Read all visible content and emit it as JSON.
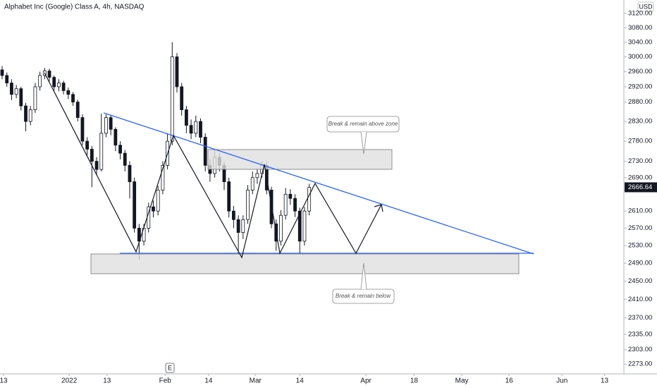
{
  "chart_data": {
    "type": "candlestick",
    "title": "Alphabet Inc (Google) Class A, 4h, NASDAQ",
    "currency": "USD",
    "earnings_marker": "E",
    "last_price": 2666.64,
    "log_scale": true,
    "up_color": "#ffffff",
    "down_color": "#131722",
    "wick_color": "#131722",
    "annotations": [
      "Break & remain above zone",
      "Break & remain below"
    ],
    "open": [
      2965,
      2950,
      2930,
      2900,
      2915,
      2870,
      2830,
      2860,
      2920,
      2950,
      2962,
      2945,
      2920,
      2930,
      2910,
      2900,
      2880,
      2840,
      2780,
      2760,
      2730,
      2710,
      2800,
      2840,
      2810,
      2770,
      2750,
      2720,
      2680,
      2570,
      2540,
      2570,
      2620,
      2610,
      2660,
      2720,
      2780,
      3000,
      2920,
      2860,
      2820,
      2800,
      2830,
      2790,
      2720,
      2700,
      2740,
      2720,
      2680,
      2610,
      2590,
      2560,
      2590,
      2660,
      2690,
      2700,
      2720,
      2660,
      2580,
      2540,
      2600,
      2650,
      2640,
      2610,
      2540,
      2610
    ],
    "high": [
      2975,
      2958,
      2940,
      2925,
      2920,
      2878,
      2870,
      2930,
      2960,
      2970,
      2968,
      2950,
      2940,
      2936,
      2918,
      2906,
      2886,
      2848,
      2790,
      2768,
      2740,
      2850,
      2848,
      2846,
      2815,
      2780,
      2758,
      2730,
      2690,
      2580,
      2580,
      2630,
      2635,
      2670,
      2730,
      2800,
      3040,
      3010,
      2930,
      2870,
      2835,
      2845,
      2838,
      2800,
      2735,
      2760,
      2750,
      2728,
      2690,
      2622,
      2600,
      2600,
      2672,
      2705,
      2712,
      2730,
      2728,
      2668,
      2590,
      2612,
      2665,
      2662,
      2650,
      2618,
      2620,
      2675
    ],
    "low": [
      2940,
      2920,
      2885,
      2890,
      2858,
      2805,
      2820,
      2852,
      2910,
      2940,
      2935,
      2910,
      2908,
      2900,
      2888,
      2870,
      2830,
      2770,
      2745,
      2667,
      2695,
      2705,
      2790,
      2795,
      2755,
      2735,
      2705,
      2640,
      2560,
      2498,
      2530,
      2560,
      2595,
      2600,
      2650,
      2710,
      2770,
      2905,
      2845,
      2800,
      2785,
      2790,
      2775,
      2705,
      2680,
      2690,
      2705,
      2660,
      2595,
      2570,
      2510,
      2545,
      2580,
      2650,
      2675,
      2690,
      2650,
      2570,
      2518,
      2530,
      2590,
      2625,
      2596,
      2512,
      2530,
      2600
    ],
    "close": [
      2950,
      2930,
      2900,
      2915,
      2870,
      2830,
      2860,
      2920,
      2950,
      2962,
      2945,
      2920,
      2930,
      2910,
      2900,
      2880,
      2840,
      2780,
      2760,
      2730,
      2710,
      2800,
      2840,
      2810,
      2770,
      2750,
      2720,
      2680,
      2570,
      2540,
      2570,
      2620,
      2610,
      2660,
      2720,
      2780,
      3000,
      2920,
      2860,
      2820,
      2800,
      2830,
      2790,
      2720,
      2700,
      2740,
      2720,
      2680,
      2610,
      2590,
      2560,
      2590,
      2660,
      2690,
      2700,
      2720,
      2660,
      2580,
      2540,
      2600,
      2650,
      2640,
      2610,
      2540,
      2610,
      2666.64
    ],
    "xlim": [
      -0.45,
      131.6
    ],
    "xticks": [
      {
        "value": 0.3,
        "label": "13"
      },
      {
        "value": 14.2,
        "label": "2022"
      },
      {
        "value": 22.2,
        "label": "13"
      },
      {
        "value": 34.5,
        "label": "Feb"
      },
      {
        "value": 43.7,
        "label": "14"
      },
      {
        "value": 53.6,
        "label": "Mar"
      },
      {
        "value": 63,
        "label": "14"
      },
      {
        "value": 77,
        "label": "Apr"
      },
      {
        "value": 87.2,
        "label": "18"
      },
      {
        "value": 97.3,
        "label": "May"
      },
      {
        "value": 107.3,
        "label": "16"
      },
      {
        "value": 118.5,
        "label": "Jun"
      },
      {
        "value": 127.5,
        "label": "13"
      }
    ],
    "ylim": [
      2256,
      3158
    ],
    "yticks": [
      {
        "value": 3120,
        "label": "3120.00"
      },
      {
        "value": 3080,
        "label": "3080.00"
      },
      {
        "value": 3040,
        "label": "3040.00"
      },
      {
        "value": 3000,
        "label": "3000.00"
      },
      {
        "value": 2960,
        "label": "2960.00"
      },
      {
        "value": 2920,
        "label": "2920.00"
      },
      {
        "value": 2880,
        "label": "2880.00"
      },
      {
        "value": 2830,
        "label": "2830.00"
      },
      {
        "value": 2780,
        "label": "2780.00"
      },
      {
        "value": 2730,
        "label": "2730.00"
      },
      {
        "value": 2690,
        "label": "2690.00"
      },
      {
        "value": 2610,
        "label": "2610.00"
      },
      {
        "value": 2570,
        "label": "2570.00"
      },
      {
        "value": 2530,
        "label": "2530.00"
      },
      {
        "value": 2490,
        "label": "2490.00"
      },
      {
        "value": 2450,
        "label": "2450.00"
      },
      {
        "value": 2410,
        "label": "2410.00"
      },
      {
        "value": 2370,
        "label": "2370.00"
      },
      {
        "value": 2335,
        "label": "2335.00"
      },
      {
        "value": 2303,
        "label": "2303.00"
      },
      {
        "value": 2273,
        "label": "2273.00"
      }
    ]
  }
}
